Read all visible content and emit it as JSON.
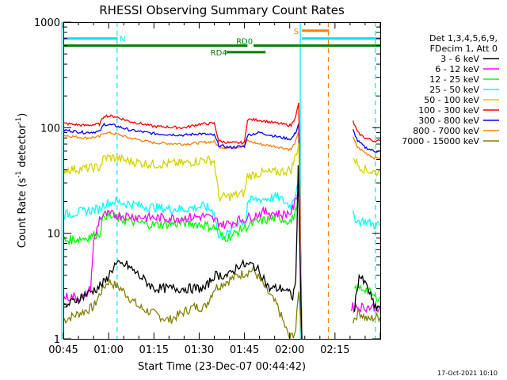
{
  "chart_data": {
    "type": "line",
    "title": "RHESSI Observing Summary Count Rates",
    "xlabel": "Start Time (23-Dec-07 00:44:42)",
    "ylabel_main": "Count Rate (s",
    "ylabel_sup1": "-1",
    "ylabel_mid": " detector",
    "ylabel_sup2": "-1",
    "ylabel_end": ")",
    "yscale": "log",
    "xlim_min": [
      45,
      150
    ],
    "ylim": [
      1,
      1000
    ],
    "x_ticks": [
      {
        "label": "00:45",
        "min": 45
      },
      {
        "label": "01:00",
        "min": 60
      },
      {
        "label": "01:15",
        "min": 75
      },
      {
        "label": "01:30",
        "min": 90
      },
      {
        "label": "01:45",
        "min": 105
      },
      {
        "label": "02:00",
        "min": 120
      },
      {
        "label": "02:15",
        "min": 135
      }
    ],
    "y_ticks": [
      {
        "label": "1",
        "value": 1
      },
      {
        "label": "10",
        "value": 10
      },
      {
        "label": "100",
        "value": 100
      },
      {
        "label": "1000",
        "value": 1000
      }
    ],
    "legend_header": [
      "Det 1,3,4,5,6,9,",
      "FDecim 1, Att 0"
    ],
    "flags": [
      {
        "label": "N",
        "color": "#00e5ee",
        "segments": [
          [
            45,
            63
          ]
        ],
        "level": 700
      },
      {
        "label": "RD0",
        "color": "#008000",
        "segments": [
          [
            45,
            106
          ],
          [
            108,
            150
          ]
        ],
        "level": 600
      },
      {
        "label": "RD4",
        "color": "#008000",
        "segments": [
          [
            99,
            112
          ]
        ],
        "level": 520
      },
      {
        "label": "S",
        "color": "#ff7f00",
        "segments": [
          [
            124,
            133
          ]
        ],
        "level": 830
      },
      {
        "label": "",
        "color": "#00e5ee",
        "segments": [
          [
            124,
            150
          ]
        ],
        "level": 700
      }
    ],
    "vlines": [
      {
        "x": 44.5,
        "color": "#00e5ee",
        "dash": false
      },
      {
        "x": 123.5,
        "color": "#00e5ee",
        "dash": false
      },
      {
        "x": 62.8,
        "color": "#00e5ee",
        "dash": true
      },
      {
        "x": 132.8,
        "color": "#ff7f00",
        "dash": true
      },
      {
        "x": 148.4,
        "color": "#00e5ee",
        "dash": true
      }
    ],
    "timestamp": "17-Oct-2021 10:10",
    "series": [
      {
        "name": "3 - 6 keV",
        "color": "#000000",
        "noisy": true,
        "points": [
          [
            45,
            2
          ],
          [
            56,
            3
          ],
          [
            59,
            3.5
          ],
          [
            60,
            4
          ],
          [
            62,
            5
          ],
          [
            66,
            5
          ],
          [
            70,
            4
          ],
          [
            75,
            3
          ],
          [
            85,
            3
          ],
          [
            92,
            3
          ],
          [
            95,
            4
          ],
          [
            100,
            4
          ],
          [
            103,
            5
          ],
          [
            108,
            5
          ],
          [
            111,
            4
          ],
          [
            113,
            3
          ],
          [
            118,
            3
          ],
          [
            121,
            2.5
          ],
          [
            122,
            3.5
          ],
          [
            122.8,
            40
          ],
          [
            124,
            1
          ]
        ],
        "points2": [
          [
            141.5,
            2
          ],
          [
            143,
            4
          ],
          [
            146,
            3
          ],
          [
            148,
            2
          ],
          [
            150,
            2
          ]
        ]
      },
      {
        "name": "6 - 12 keV",
        "color": "#ff00ff",
        "noisy": true,
        "points": [
          [
            45,
            2.5
          ],
          [
            52,
            2.5
          ],
          [
            54,
            3
          ],
          [
            55,
            8
          ],
          [
            57,
            14
          ],
          [
            59,
            15
          ],
          [
            62,
            15
          ],
          [
            67,
            14.5
          ],
          [
            75,
            14
          ],
          [
            85,
            14
          ],
          [
            92,
            14.5
          ],
          [
            96,
            13
          ],
          [
            98,
            12
          ],
          [
            102,
            13
          ],
          [
            106,
            14
          ],
          [
            112,
            16
          ],
          [
            118,
            15
          ],
          [
            120.5,
            16
          ],
          [
            122,
            20
          ],
          [
            123,
            30
          ],
          [
            124,
            1
          ]
        ],
        "points2": [
          [
            140.5,
            2
          ],
          [
            142,
            2
          ],
          [
            145,
            2
          ],
          [
            148,
            2
          ],
          [
            150,
            2
          ]
        ]
      },
      {
        "name": "12 - 25 keV",
        "color": "#00ff00",
        "noisy": true,
        "points": [
          [
            45,
            8.5
          ],
          [
            52,
            9
          ],
          [
            57,
            10
          ],
          [
            58.5,
            15
          ],
          [
            62,
            14
          ],
          [
            67,
            13
          ],
          [
            75,
            12
          ],
          [
            85,
            12.5
          ],
          [
            92,
            12
          ],
          [
            96,
            11
          ],
          [
            98,
            9
          ],
          [
            101,
            9.5
          ],
          [
            104,
            11
          ],
          [
            110,
            13
          ],
          [
            116,
            14
          ],
          [
            120.5,
            13
          ],
          [
            122,
            16
          ],
          [
            123,
            25
          ],
          [
            124,
            1
          ]
        ],
        "points2": [
          [
            141.5,
            3
          ],
          [
            145,
            3
          ],
          [
            148,
            2.5
          ],
          [
            150,
            2.5
          ]
        ]
      },
      {
        "name": "25 - 50 keV",
        "color": "#00ffff",
        "noisy": true,
        "points": [
          [
            45,
            15
          ],
          [
            57,
            17
          ],
          [
            58.5,
            19
          ],
          [
            62,
            20
          ],
          [
            67,
            19
          ],
          [
            72,
            18
          ],
          [
            80,
            17
          ],
          [
            85,
            17
          ],
          [
            92,
            18
          ],
          [
            95,
            16
          ],
          [
            96.5,
            9
          ],
          [
            100,
            10
          ],
          [
            103,
            13
          ],
          [
            105.5,
            13
          ],
          [
            106,
            20
          ],
          [
            110,
            21
          ],
          [
            116,
            22
          ],
          [
            120.5,
            18
          ],
          [
            122,
            25
          ],
          [
            123,
            35
          ],
          [
            124,
            1
          ]
        ],
        "points2": [
          [
            141,
            15
          ],
          [
            142.5,
            13
          ],
          [
            145,
            13
          ],
          [
            148,
            12
          ],
          [
            150,
            12
          ]
        ]
      },
      {
        "name": "50 - 100 keV",
        "color": "#d4d400",
        "noisy": true,
        "points": [
          [
            45,
            40
          ],
          [
            57,
            42
          ],
          [
            58.5,
            52
          ],
          [
            62,
            52
          ],
          [
            67,
            48
          ],
          [
            75,
            45
          ],
          [
            85,
            46
          ],
          [
            92,
            50
          ],
          [
            95,
            48
          ],
          [
            96.5,
            22
          ],
          [
            99,
            22
          ],
          [
            105,
            24
          ],
          [
            106,
            35
          ],
          [
            110,
            37
          ],
          [
            116,
            38
          ],
          [
            120.5,
            40
          ],
          [
            122,
            55
          ],
          [
            123,
            70
          ],
          [
            124,
            1
          ]
        ],
        "points2": [
          [
            141,
            55
          ],
          [
            142.5,
            45
          ],
          [
            145,
            40
          ],
          [
            148,
            38
          ],
          [
            150,
            38
          ]
        ]
      },
      {
        "name": "100 - 300 keV",
        "color": "#ff0000",
        "noisy": false,
        "points": [
          [
            45,
            110
          ],
          [
            52,
            105
          ],
          [
            57,
            108
          ],
          [
            58.5,
            130
          ],
          [
            62,
            128
          ],
          [
            67,
            115
          ],
          [
            75,
            103
          ],
          [
            85,
            100
          ],
          [
            90,
            108
          ],
          [
            95,
            110
          ],
          [
            96.5,
            75
          ],
          [
            100,
            72
          ],
          [
            105,
            72
          ],
          [
            106,
            120
          ],
          [
            110,
            118
          ],
          [
            116,
            110
          ],
          [
            120.5,
            105
          ],
          [
            122,
            130
          ],
          [
            123,
            170
          ],
          [
            124,
            1
          ]
        ],
        "points2": [
          [
            141,
            115
          ],
          [
            142.5,
            90
          ],
          [
            145,
            80
          ],
          [
            148,
            75
          ],
          [
            150,
            75
          ]
        ]
      },
      {
        "name": "300 - 800 keV",
        "color": "#0000ff",
        "noisy": false,
        "points": [
          [
            45,
            95
          ],
          [
            52,
            90
          ],
          [
            57,
            92
          ],
          [
            58.5,
            108
          ],
          [
            62,
            105
          ],
          [
            67,
            95
          ],
          [
            75,
            88
          ],
          [
            85,
            85
          ],
          [
            90,
            88
          ],
          [
            95,
            85
          ],
          [
            96.5,
            68
          ],
          [
            100,
            65
          ],
          [
            105,
            67
          ],
          [
            106,
            85
          ],
          [
            110,
            90
          ],
          [
            116,
            82
          ],
          [
            120.5,
            78
          ],
          [
            122,
            90
          ],
          [
            123,
            110
          ],
          [
            124,
            1
          ]
        ],
        "points2": [
          [
            141,
            95
          ],
          [
            142.5,
            75
          ],
          [
            145,
            65
          ],
          [
            148,
            60
          ],
          [
            150,
            60
          ]
        ]
      },
      {
        "name": "800 - 7000 keV",
        "color": "#ff7f00",
        "noisy": false,
        "points": [
          [
            45,
            85
          ],
          [
            52,
            80
          ],
          [
            57,
            82
          ],
          [
            58.5,
            90
          ],
          [
            62,
            88
          ],
          [
            67,
            80
          ],
          [
            75,
            72
          ],
          [
            85,
            70
          ],
          [
            90,
            72
          ],
          [
            95,
            74
          ],
          [
            96.5,
            66
          ],
          [
            100,
            64
          ],
          [
            105,
            67
          ],
          [
            106,
            75
          ],
          [
            110,
            70
          ],
          [
            116,
            66
          ],
          [
            120.5,
            62
          ],
          [
            122,
            75
          ],
          [
            123,
            90
          ],
          [
            124,
            1
          ]
        ],
        "points2": [
          [
            141,
            80
          ],
          [
            142.5,
            65
          ],
          [
            145,
            58
          ],
          [
            148,
            52
          ],
          [
            150,
            52
          ]
        ]
      },
      {
        "name": "7000 - 15000 keV",
        "color": "#808000",
        "noisy": true,
        "points": [
          [
            45,
            1.5
          ],
          [
            55,
            2
          ],
          [
            58,
            3
          ],
          [
            60,
            3.5
          ],
          [
            64,
            3
          ],
          [
            70,
            2
          ],
          [
            80,
            1.5
          ],
          [
            88,
            2
          ],
          [
            92,
            2
          ],
          [
            95,
            3
          ],
          [
            99,
            3.5
          ],
          [
            103,
            4
          ],
          [
            108,
            4.5
          ],
          [
            112,
            3
          ],
          [
            116,
            2
          ],
          [
            120,
            1
          ],
          [
            122,
            1.2
          ],
          [
            123,
            3
          ],
          [
            124,
            1
          ]
        ],
        "points2": [
          [
            141,
            1.5
          ],
          [
            143,
            1.8
          ],
          [
            146,
            1.5
          ],
          [
            148,
            1.6
          ],
          [
            150,
            1.6
          ]
        ]
      }
    ]
  }
}
